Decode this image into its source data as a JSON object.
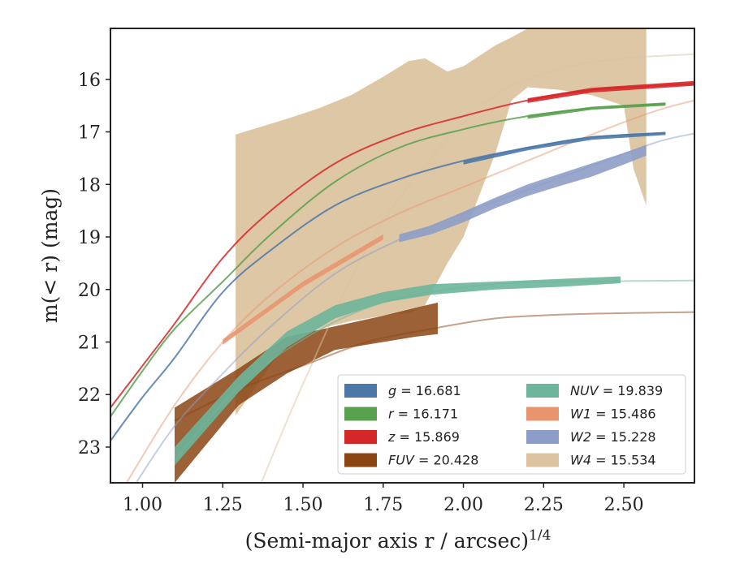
{
  "chart_data": {
    "type": "line",
    "xlabel": "(Semi-major axis r / arcsec)",
    "xlabel_power": "1/4",
    "ylabel": "m(< r) (mag)",
    "xlim": [
      0.9,
      2.72
    ],
    "ylim": [
      23.68,
      15.03
    ],
    "y_inverted": true,
    "grid": false,
    "legend_position": "lower-right",
    "xticks": [
      1.0,
      1.25,
      1.5,
      1.75,
      2.0,
      2.25,
      2.5
    ],
    "xtick_labels": [
      "1.00",
      "1.25",
      "1.50",
      "1.75",
      "2.00",
      "2.25",
      "2.50"
    ],
    "yticks": [
      16,
      17,
      18,
      19,
      20,
      21,
      22,
      23
    ],
    "ytick_labels": [
      "16",
      "17",
      "18",
      "19",
      "20",
      "21",
      "22",
      "23"
    ],
    "series": [
      {
        "name": "g",
        "value": "16.681",
        "color": "#4c78a8",
        "fit": [
          [
            0.9,
            22.88
          ],
          [
            1.0,
            22.05
          ],
          [
            1.1,
            21.3
          ],
          [
            1.25,
            20.05
          ],
          [
            1.4,
            19.25
          ],
          [
            1.6,
            18.4
          ],
          [
            1.8,
            17.9
          ],
          [
            2.0,
            17.55
          ],
          [
            2.2,
            17.3
          ],
          [
            2.4,
            17.1
          ],
          [
            2.63,
            17.02
          ]
        ],
        "band_x": [
          2.0,
          2.2,
          2.4,
          2.63
        ],
        "band_lower": [
          17.62,
          17.35,
          17.15,
          17.06
        ],
        "band_upper": [
          17.55,
          17.28,
          17.08,
          17.0
        ]
      },
      {
        "name": "r",
        "value": "16.171",
        "color": "#59a14f",
        "fit": [
          [
            0.9,
            22.42
          ],
          [
            1.0,
            21.55
          ],
          [
            1.1,
            20.75
          ],
          [
            1.25,
            19.85
          ],
          [
            1.4,
            18.95
          ],
          [
            1.6,
            17.95
          ],
          [
            1.8,
            17.3
          ],
          [
            2.0,
            16.95
          ],
          [
            2.2,
            16.7
          ],
          [
            2.4,
            16.55
          ],
          [
            2.63,
            16.47
          ]
        ],
        "band_x": [
          2.2,
          2.4,
          2.63
        ],
        "band_lower": [
          16.75,
          16.58,
          16.5
        ],
        "band_upper": [
          16.68,
          16.52,
          16.44
        ]
      },
      {
        "name": "z",
        "value": "15.869",
        "color": "#d62728",
        "fit": [
          [
            0.9,
            22.25
          ],
          [
            1.0,
            21.45
          ],
          [
            1.1,
            20.65
          ],
          [
            1.25,
            19.4
          ],
          [
            1.4,
            18.5
          ],
          [
            1.6,
            17.6
          ],
          [
            1.8,
            17.05
          ],
          [
            2.0,
            16.7
          ],
          [
            2.2,
            16.4
          ],
          [
            2.4,
            16.2
          ],
          [
            2.6,
            16.12
          ],
          [
            2.72,
            16.08
          ]
        ],
        "band_x": [
          2.2,
          2.4,
          2.6,
          2.72
        ],
        "band_lower": [
          16.45,
          16.25,
          16.17,
          16.12
        ],
        "band_upper": [
          16.36,
          16.16,
          16.08,
          16.03
        ]
      },
      {
        "name": "FUV",
        "value": "20.428",
        "color": "#8b4513",
        "fit": [
          [
            1.1,
            22.5
          ],
          [
            1.3,
            21.9
          ],
          [
            1.5,
            21.45
          ],
          [
            1.7,
            21.0
          ],
          [
            1.9,
            20.75
          ],
          [
            2.1,
            20.55
          ],
          [
            2.3,
            20.48
          ],
          [
            2.5,
            20.45
          ],
          [
            2.72,
            20.43
          ]
        ],
        "band_x": [
          1.1,
          1.3,
          1.45,
          1.6,
          1.75,
          1.85,
          1.92
        ],
        "band_lower": [
          23.68,
          22.2,
          21.6,
          21.15,
          21.0,
          20.9,
          20.85
        ],
        "band_upper": [
          22.25,
          21.5,
          20.9,
          20.7,
          20.5,
          20.35,
          20.25
        ]
      },
      {
        "name": "NUV",
        "value": "19.839",
        "color": "#6db59b",
        "fit": [
          [
            1.1,
            23.25
          ],
          [
            1.3,
            21.85
          ],
          [
            1.5,
            20.95
          ],
          [
            1.7,
            20.35
          ],
          [
            1.9,
            20.05
          ],
          [
            2.1,
            19.9
          ],
          [
            2.3,
            19.85
          ],
          [
            2.5,
            19.84
          ],
          [
            2.72,
            19.83
          ]
        ],
        "band_x": [
          1.1,
          1.3,
          1.45,
          1.6,
          1.75,
          1.9,
          2.1,
          2.3,
          2.49
        ],
        "band_lower": [
          23.35,
          21.95,
          21.1,
          20.55,
          20.25,
          20.1,
          20.0,
          19.95,
          19.88
        ],
        "band_upper": [
          23.0,
          21.65,
          20.8,
          20.3,
          20.05,
          19.9,
          19.85,
          19.8,
          19.75
        ]
      },
      {
        "name": "W1",
        "value": "15.486",
        "color": "#e8956e",
        "fit": [
          [
            0.95,
            23.68
          ],
          [
            1.1,
            22.2
          ],
          [
            1.25,
            21.0
          ],
          [
            1.4,
            20.1
          ],
          [
            1.6,
            19.2
          ],
          [
            1.8,
            18.55
          ],
          [
            2.0,
            18.05
          ],
          [
            2.2,
            17.55
          ],
          [
            2.4,
            17.05
          ],
          [
            2.6,
            16.6
          ],
          [
            2.72,
            16.4
          ]
        ],
        "band_x": [
          1.25,
          1.5,
          1.75
        ],
        "band_lower": [
          21.05,
          19.95,
          19.05
        ],
        "band_upper": [
          20.95,
          19.85,
          18.95
        ]
      },
      {
        "name": "W2",
        "value": "15.228",
        "color": "#8e9dc7",
        "fit": [
          [
            0.98,
            23.68
          ],
          [
            1.1,
            22.6
          ],
          [
            1.25,
            21.6
          ],
          [
            1.4,
            20.7
          ],
          [
            1.6,
            19.7
          ],
          [
            1.8,
            19.05
          ],
          [
            2.0,
            18.55
          ],
          [
            2.2,
            18.1
          ],
          [
            2.4,
            17.65
          ],
          [
            2.6,
            17.2
          ],
          [
            2.72,
            17.03
          ]
        ],
        "band_x": [
          1.8,
          1.9,
          2.0,
          2.1,
          2.2,
          2.3,
          2.4,
          2.5,
          2.57
        ],
        "band_lower": [
          19.1,
          18.95,
          18.72,
          18.45,
          18.22,
          18.03,
          17.85,
          17.62,
          17.45
        ],
        "band_upper": [
          18.95,
          18.78,
          18.52,
          18.25,
          18.0,
          17.8,
          17.6,
          17.4,
          17.25
        ]
      },
      {
        "name": "W4",
        "value": "15.534",
        "color": "#dcc4a0",
        "fit": [
          [
            1.37,
            23.68
          ],
          [
            1.5,
            21.8
          ],
          [
            1.7,
            19.2
          ],
          [
            1.9,
            17.5
          ],
          [
            2.1,
            16.3
          ],
          [
            2.3,
            15.8
          ],
          [
            2.5,
            15.6
          ],
          [
            2.72,
            15.52
          ]
        ],
        "band_x": [
          1.29,
          1.45,
          1.55,
          1.65,
          1.75,
          1.83,
          1.88,
          1.95,
          2.0,
          2.1,
          2.15,
          2.2,
          2.3,
          2.4,
          2.5,
          2.53,
          2.57
        ],
        "band_lower": [
          22.4,
          21.0,
          20.75,
          20.6,
          20.5,
          20.45,
          20.3,
          19.5,
          19.0,
          17.4,
          16.4,
          16.15,
          16.2,
          16.3,
          16.5,
          17.7,
          18.4
        ],
        "band_upper": [
          17.05,
          16.75,
          16.55,
          16.3,
          15.95,
          15.65,
          15.6,
          15.85,
          15.75,
          15.35,
          15.2,
          15.03,
          15.03,
          15.03,
          15.03,
          15.03,
          15.03
        ]
      }
    ]
  }
}
